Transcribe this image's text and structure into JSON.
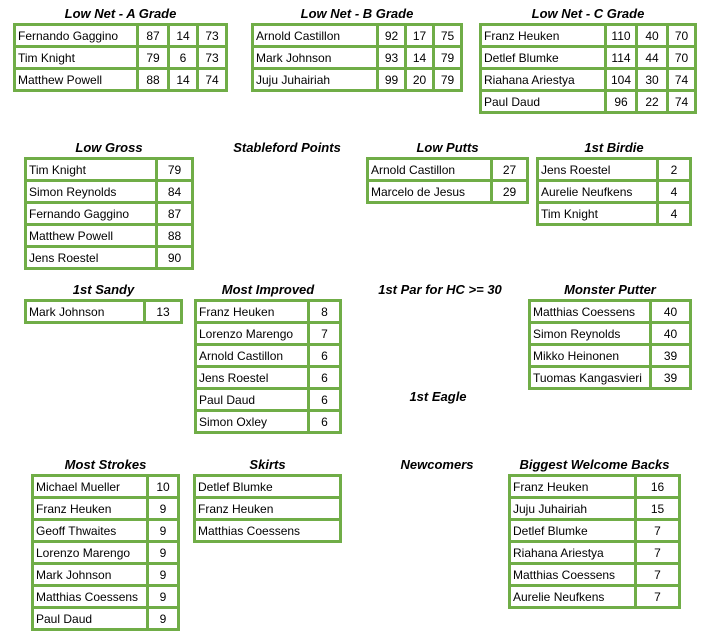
{
  "sections": [
    {
      "title": "Low Net - A Grade",
      "rows": [
        [
          "Fernando Gaggino",
          87,
          14,
          73
        ],
        [
          "Tim Knight",
          79,
          6,
          73
        ],
        [
          "Matthew Powell",
          88,
          14,
          74
        ]
      ]
    },
    {
      "title": "Low Net - B Grade",
      "rows": [
        [
          "Arnold Castillon",
          92,
          17,
          75
        ],
        [
          "Mark Johnson",
          93,
          14,
          79
        ],
        [
          "Juju Juhairiah",
          99,
          20,
          79
        ]
      ]
    },
    {
      "title": "Low Net - C Grade",
      "rows": [
        [
          "Franz Heuken",
          110,
          40,
          70
        ],
        [
          "Detlef Blumke",
          114,
          44,
          70
        ],
        [
          "Riahana Ariestya",
          104,
          30,
          74
        ],
        [
          "Paul Daud",
          96,
          22,
          74
        ]
      ]
    },
    {
      "title": "Low Gross",
      "rows": [
        [
          "Tim Knight",
          79
        ],
        [
          "Simon Reynolds",
          84
        ],
        [
          "Fernando Gaggino",
          87
        ],
        [
          "Matthew Powell",
          88
        ],
        [
          "Jens Roestel",
          90
        ]
      ]
    },
    {
      "title": "Stableford Points"
    },
    {
      "title": "Low Putts",
      "rows": [
        [
          "Arnold Castillon",
          27
        ],
        [
          "Marcelo de Jesus",
          29
        ]
      ]
    },
    {
      "title": "1st Birdie",
      "rows": [
        [
          "Jens Roestel",
          2
        ],
        [
          "Aurelie Neufkens",
          4
        ],
        [
          "Tim Knight",
          4
        ]
      ]
    },
    {
      "title": "1st Sandy",
      "rows": [
        [
          "Mark Johnson",
          13
        ]
      ]
    },
    {
      "title": "Most Improved",
      "rows": [
        [
          "Franz Heuken",
          8
        ],
        [
          "Lorenzo Marengo",
          7
        ],
        [
          "Arnold Castillon",
          6
        ],
        [
          "Jens Roestel",
          6
        ],
        [
          "Paul Daud",
          6
        ],
        [
          "Simon Oxley",
          6
        ]
      ]
    },
    {
      "title": "1st Par for HC >= 30"
    },
    {
      "title": "Monster Putter",
      "rows": [
        [
          "Matthias Coessens",
          40
        ],
        [
          "Simon Reynolds",
          40
        ],
        [
          "Mikko Heinonen",
          39
        ],
        [
          "Tuomas Kangasvieri",
          39
        ]
      ]
    },
    {
      "title": "1st Eagle"
    },
    {
      "title": "Most Strokes",
      "rows": [
        [
          "Michael Mueller",
          10
        ],
        [
          "Franz Heuken",
          9
        ],
        [
          "Geoff Thwaites",
          9
        ],
        [
          "Lorenzo Marengo",
          9
        ],
        [
          "Mark Johnson",
          9
        ],
        [
          "Matthias Coessens",
          9
        ],
        [
          "Paul Daud",
          9
        ]
      ]
    },
    {
      "title": "Skirts",
      "rows": [
        [
          "Detlef Blumke"
        ],
        [
          "Franz Heuken"
        ],
        [
          "Matthias Coessens"
        ]
      ]
    },
    {
      "title": "Newcomers"
    },
    {
      "title": "Biggest Welcome Backs",
      "rows": [
        [
          "Franz Heuken",
          16
        ],
        [
          "Juju Juhairiah",
          15
        ],
        [
          "Detlef Blumke",
          7
        ],
        [
          "Riahana Ariestya",
          7
        ],
        [
          "Matthias Coessens",
          7
        ],
        [
          "Aurelie Neufkens",
          7
        ]
      ]
    }
  ]
}
